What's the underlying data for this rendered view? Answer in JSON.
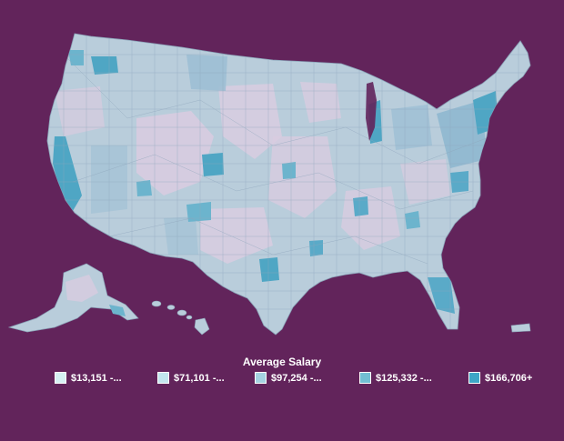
{
  "legend": {
    "title": "Average Salary",
    "items": [
      {
        "label": "$13,151 -...",
        "color": "#d6f1f4"
      },
      {
        "label": "$71,101 -...",
        "color": "#c3e6ee"
      },
      {
        "label": "$97,254 -...",
        "color": "#a5d3e2"
      },
      {
        "label": "$125,332 -...",
        "color": "#72bed3"
      },
      {
        "label": "$166,706+",
        "color": "#3ea6c7"
      }
    ]
  },
  "colors": {
    "background": "#62245b",
    "map_base": "#b9cddb",
    "map_low": "#d8cce0",
    "map_high": "#4fa6c4",
    "map_border": "#7f97ad"
  }
}
